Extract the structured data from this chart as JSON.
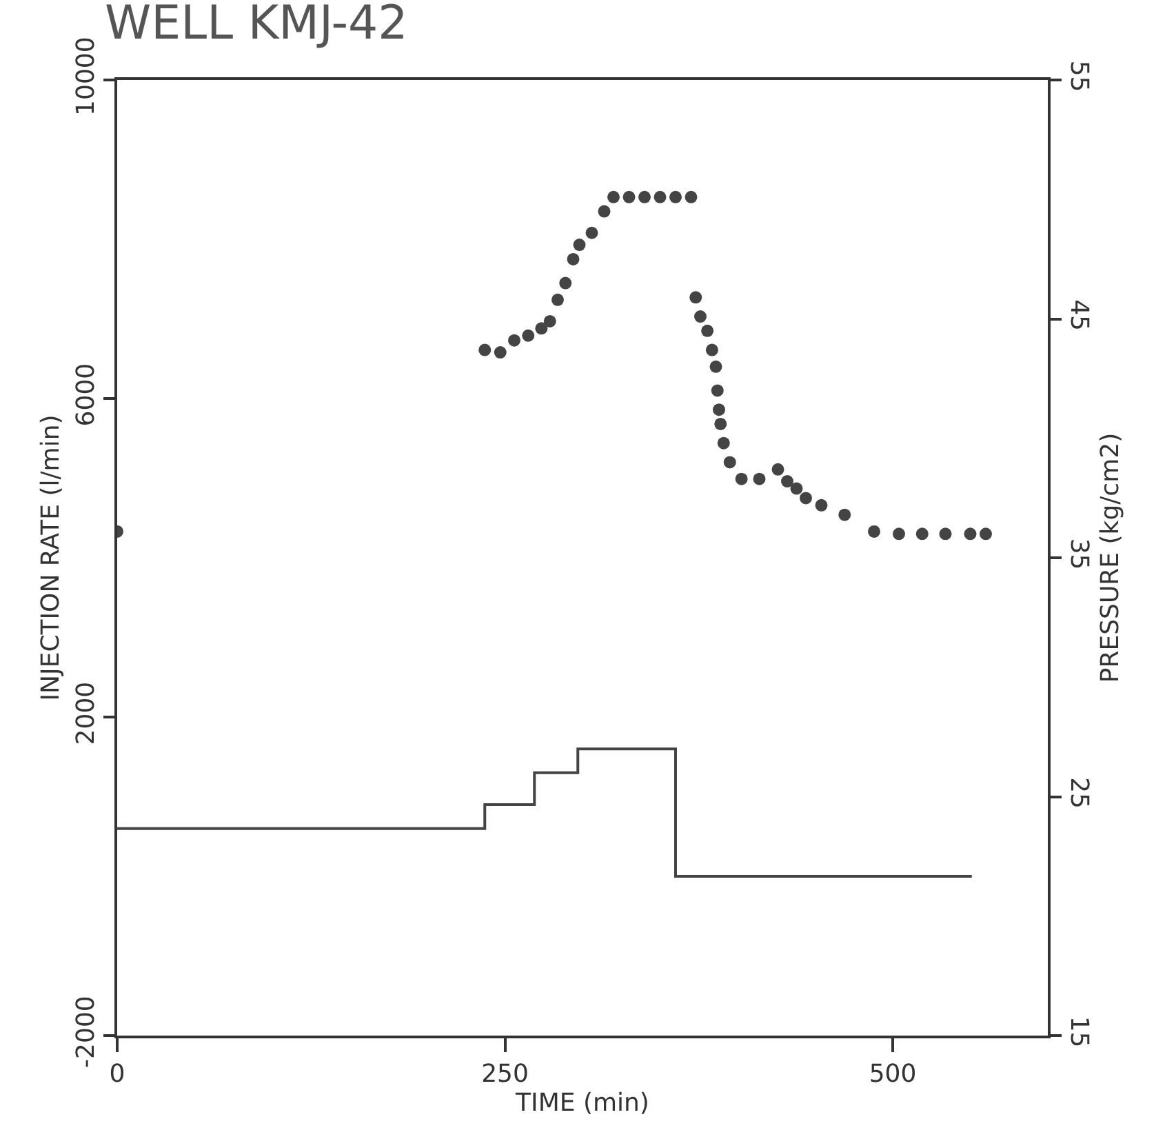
{
  "chart_data": {
    "type": "scatter",
    "title": "WELL KMJ-42",
    "xlabel": "TIME (min)",
    "ylabel": "INJECTION RATE (l/min)",
    "y2label": "PRESSURE (kg/cm2)",
    "xlim": [
      0,
      600
    ],
    "xticks": [
      0,
      250,
      500
    ],
    "ylim": [
      -2000,
      10000
    ],
    "yticks": [
      -2000,
      2000,
      6000,
      10000
    ],
    "y2lim": [
      15,
      55
    ],
    "y2ticks": [
      15,
      25,
      35,
      45,
      55
    ],
    "series": [
      {
        "type": "step",
        "color": "#444444",
        "x": [
          0,
          237,
          269,
          297,
          360,
          551
        ],
        "values": [
          600,
          900,
          1300,
          1600,
          0,
          0
        ]
      },
      {
        "axis": "y2",
        "marker": "circle",
        "color": "#444444",
        "x": [
          0,
          237,
          247,
          256,
          265,
          273.5,
          279,
          284,
          289,
          294,
          298,
          306,
          314,
          320,
          330,
          340,
          350,
          360,
          370,
          373,
          376,
          380.5,
          383.5,
          386,
          387,
          388,
          389,
          391,
          395,
          402.5,
          414,
          426,
          432,
          438,
          444,
          454,
          469,
          488,
          504,
          519,
          534,
          550,
          560
        ],
        "values": [
          36.1,
          43.7,
          43.6,
          44.1,
          44.3,
          44.6,
          44.9,
          45.8,
          46.5,
          47.5,
          48.1,
          48.6,
          49.5,
          50.1,
          50.1,
          50.1,
          50.1,
          50.1,
          50.1,
          45.9,
          45.1,
          44.5,
          43.7,
          43.0,
          42.0,
          41.2,
          40.6,
          39.8,
          39.0,
          38.3,
          38.3,
          38.7,
          38.2,
          37.9,
          37.5,
          37.2,
          36.8,
          36.1,
          36.0,
          36.0,
          36.0,
          36.0,
          36.0
        ]
      }
    ]
  }
}
